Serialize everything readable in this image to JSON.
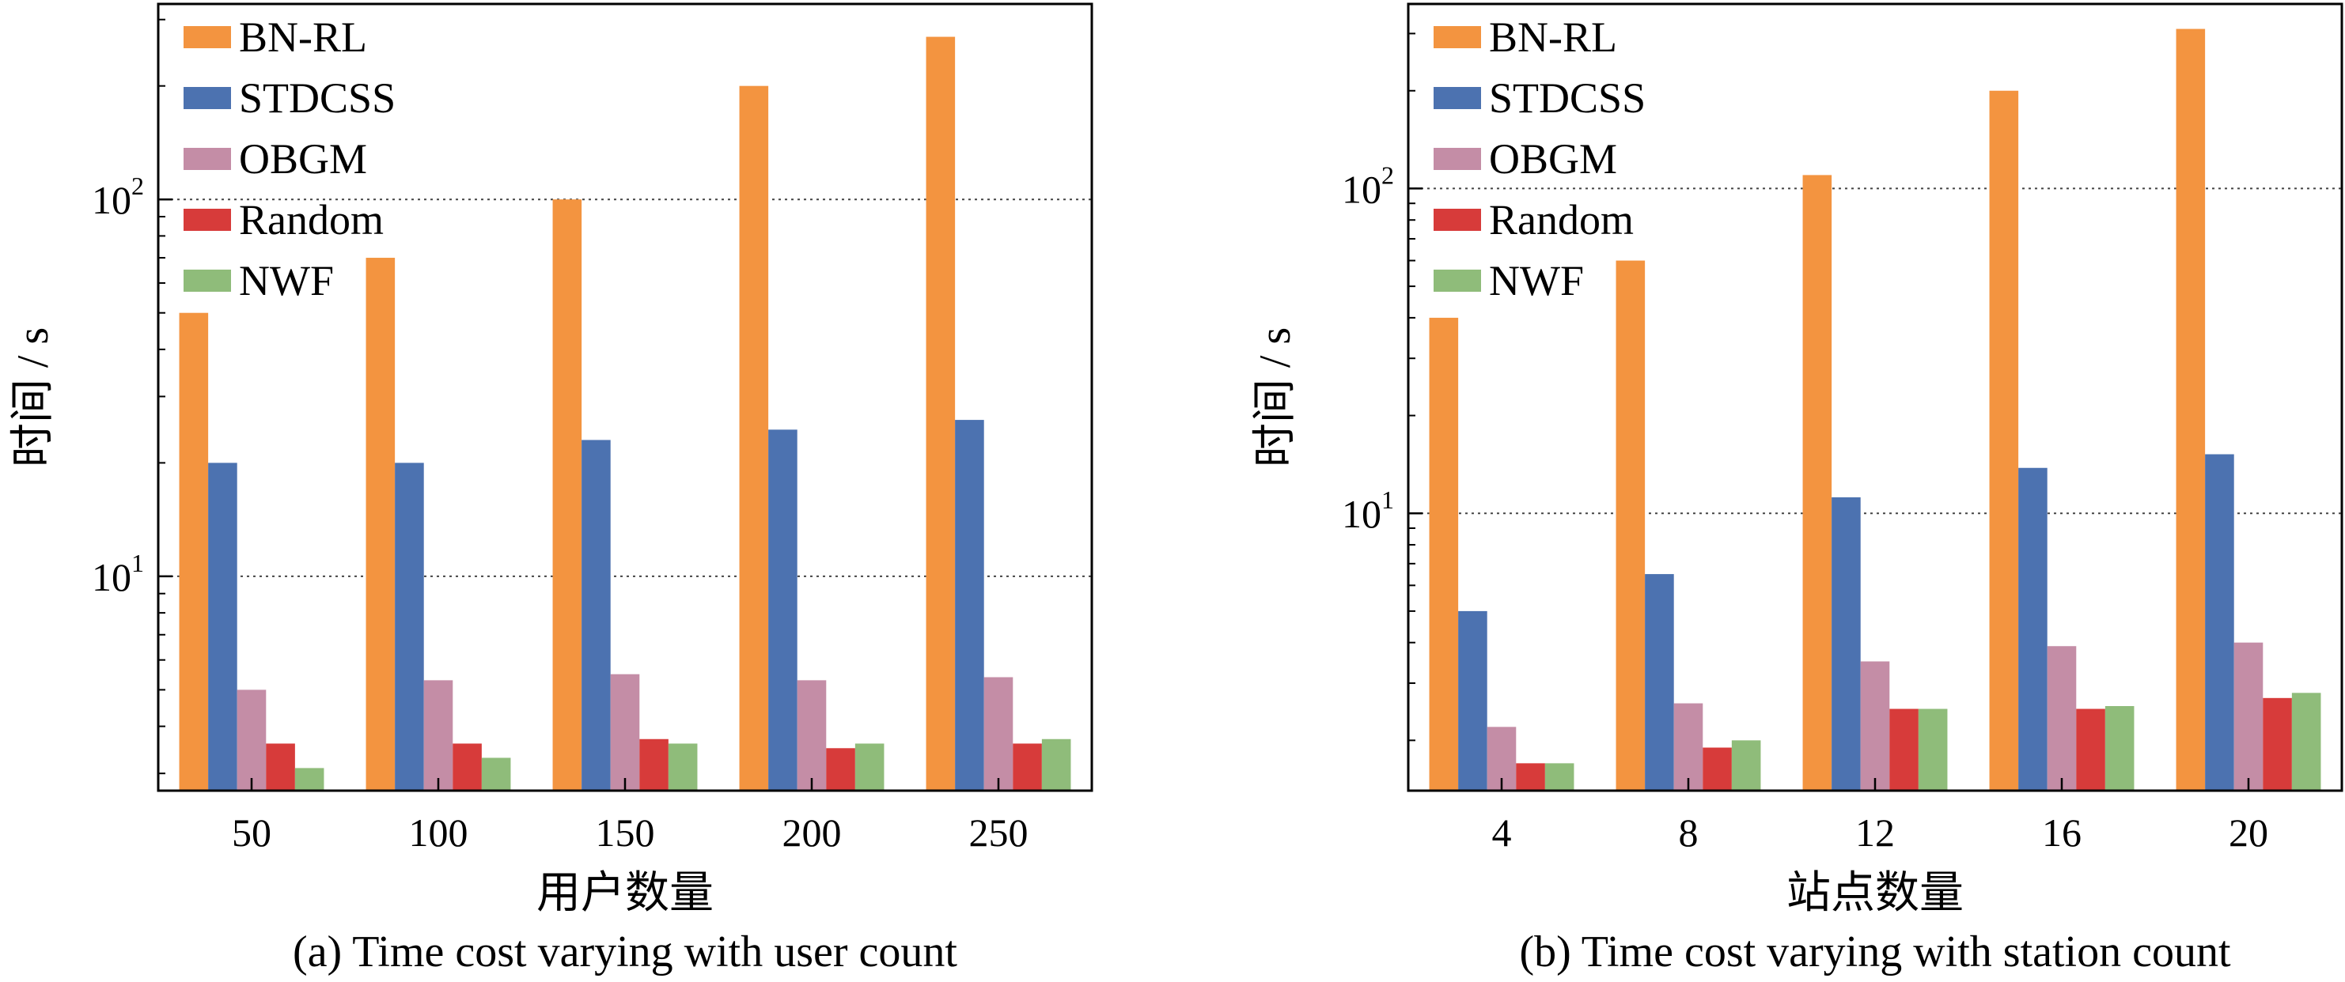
{
  "chart_data": [
    {
      "type": "bar",
      "caption": "(a) Time cost varying with user count",
      "xlabel": "用户数量",
      "ylabel": "时间 / s",
      "yscale": "log",
      "ylim": [
        2.7,
        330
      ],
      "yticks": [
        {
          "base": "10",
          "exp": "1",
          "value": 10
        },
        {
          "base": "10",
          "exp": "2",
          "value": 100
        }
      ],
      "grid": "dotted horizontal at major ticks",
      "legend_position": "top-left",
      "categories": [
        "50",
        "100",
        "150",
        "200",
        "250"
      ],
      "series": [
        {
          "name": "BN-RL",
          "color": "#F39440",
          "values": [
            50,
            70,
            100,
            200,
            270
          ]
        },
        {
          "name": "STDCSS",
          "color": "#4C72B0",
          "values": [
            20,
            20,
            23,
            24.5,
            26
          ]
        },
        {
          "name": "OBGM",
          "color": "#C48DA6",
          "values": [
            5,
            5.3,
            5.5,
            5.3,
            5.4
          ]
        },
        {
          "name": "Random",
          "color": "#D73B3A",
          "values": [
            3.6,
            3.6,
            3.7,
            3.5,
            3.6
          ]
        },
        {
          "name": "NWF",
          "color": "#8FBC7A",
          "values": [
            3.1,
            3.3,
            3.6,
            3.6,
            3.7
          ]
        }
      ]
    },
    {
      "type": "bar",
      "caption": "(b) Time cost varying with station count",
      "xlabel": "站点数量",
      "ylabel": "时间 / s",
      "yscale": "log",
      "ylim": [
        1.4,
        370
      ],
      "yticks": [
        {
          "base": "10",
          "exp": "1",
          "value": 10
        },
        {
          "base": "10",
          "exp": "2",
          "value": 100
        }
      ],
      "grid": "dotted horizontal at major ticks",
      "legend_position": "top-left",
      "categories": [
        "4",
        "8",
        "12",
        "16",
        "20"
      ],
      "series": [
        {
          "name": "BN-RL",
          "color": "#F39440",
          "values": [
            40,
            60,
            110,
            200,
            310
          ]
        },
        {
          "name": "STDCSS",
          "color": "#4C72B0",
          "values": [
            5,
            6.5,
            11.2,
            13.8,
            15.2
          ]
        },
        {
          "name": "OBGM",
          "color": "#C48DA6",
          "values": [
            2.2,
            2.6,
            3.5,
            3.9,
            4.0
          ]
        },
        {
          "name": "Random",
          "color": "#D73B3A",
          "values": [
            1.7,
            1.9,
            2.5,
            2.5,
            2.7
          ]
        },
        {
          "name": "NWF",
          "color": "#8FBC7A",
          "values": [
            1.7,
            2.0,
            2.5,
            2.55,
            2.8
          ]
        }
      ]
    }
  ]
}
